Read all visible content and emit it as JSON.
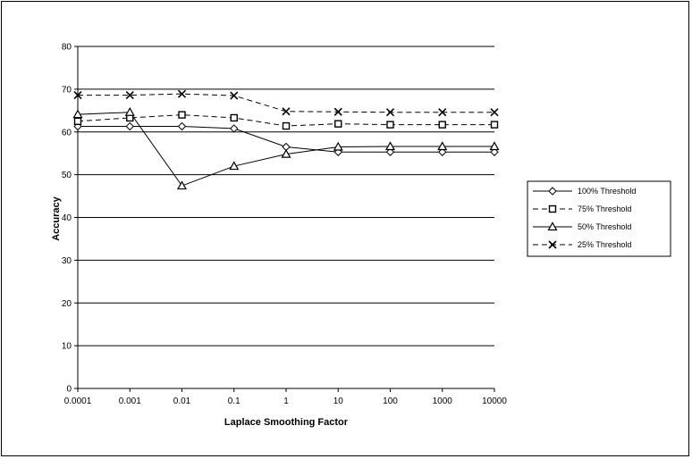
{
  "chart_data": {
    "type": "line",
    "title": "",
    "xlabel": "Laplace Smoothing Factor",
    "ylabel": "Accuracy",
    "categories": [
      "0.0001",
      "0.001",
      "0.01",
      "0.1",
      "1",
      "10",
      "100",
      "1000",
      "10000"
    ],
    "yticks": [
      "0",
      "10",
      "20",
      "30",
      "40",
      "50",
      "60",
      "70",
      "80"
    ],
    "ylim": [
      0,
      80
    ],
    "grid": "horizontal",
    "legend_position": "right",
    "series": [
      {
        "name": "100% Threshold",
        "marker": "diamond",
        "dash": "solid",
        "values": [
          61.3,
          61.3,
          61.3,
          60.8,
          56.5,
          55.3,
          55.3,
          55.3,
          55.3
        ]
      },
      {
        "name": "75% Threshold",
        "marker": "square",
        "dash": "dashed",
        "values": [
          62.5,
          63.3,
          64.0,
          63.3,
          61.4,
          61.9,
          61.7,
          61.7,
          61.7
        ]
      },
      {
        "name": "50% Threshold",
        "marker": "triangle",
        "dash": "solid",
        "values": [
          64.1,
          64.6,
          47.4,
          52.0,
          54.8,
          56.5,
          56.6,
          56.6,
          56.6
        ]
      },
      {
        "name": "25% Threshold",
        "marker": "x",
        "dash": "dashed",
        "values": [
          68.6,
          68.6,
          68.9,
          68.5,
          64.8,
          64.7,
          64.6,
          64.6,
          64.6
        ]
      }
    ]
  }
}
